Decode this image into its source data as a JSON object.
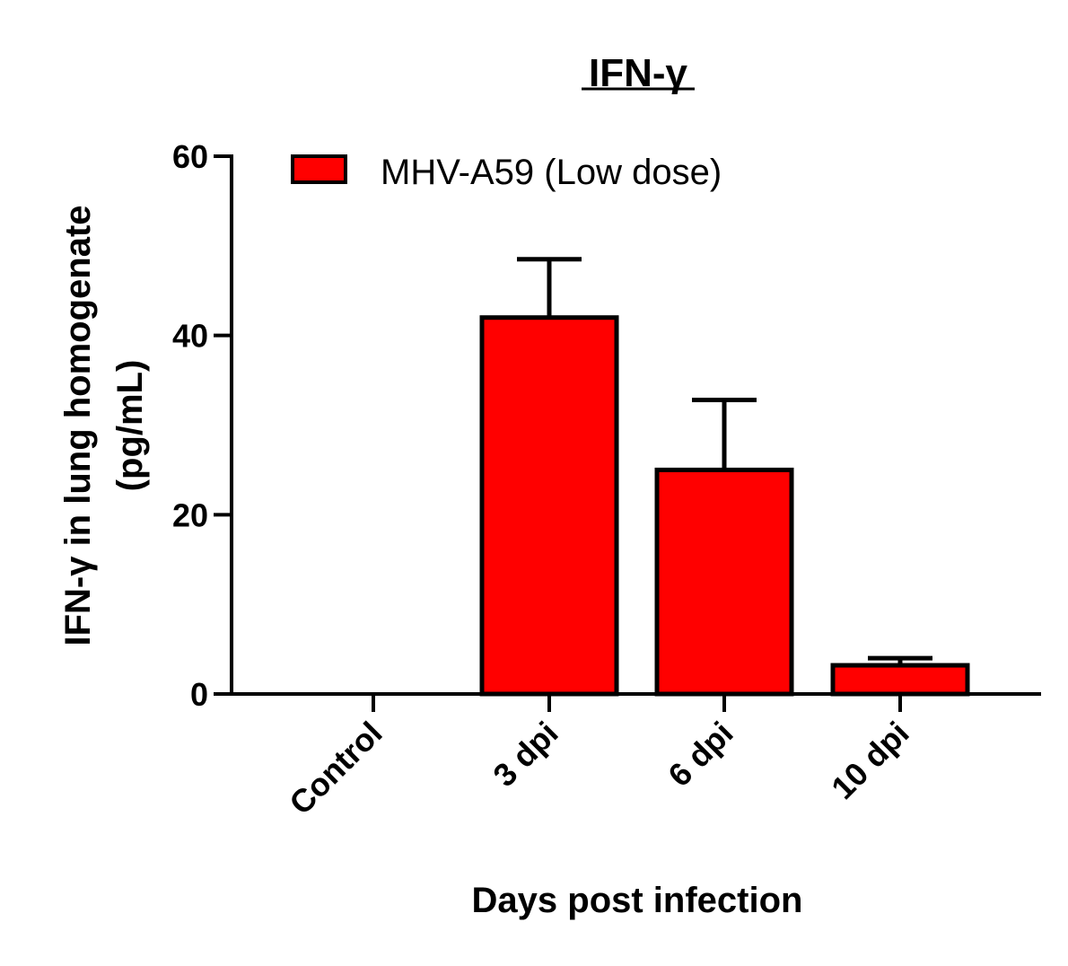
{
  "chart_data": {
    "type": "bar",
    "title": "IFN-γ",
    "xlabel": "Days post infection",
    "ylabel_line1": "IFN-γ in lung homogenate",
    "ylabel_line2": "(pg/mL)",
    "categories": [
      "Control",
      "3 dpi",
      "6 dpi",
      "10 dpi"
    ],
    "series": [
      {
        "name": "MHV-A59 (Low dose)",
        "color": "#ff0000",
        "values": [
          0,
          42,
          25,
          3.2
        ],
        "error_upper": [
          0,
          6.5,
          7.8,
          0.8
        ]
      }
    ],
    "ylim": [
      0,
      60
    ],
    "yticks": [
      0,
      20,
      40,
      60
    ],
    "legend_position": "top-left",
    "grid": false
  }
}
